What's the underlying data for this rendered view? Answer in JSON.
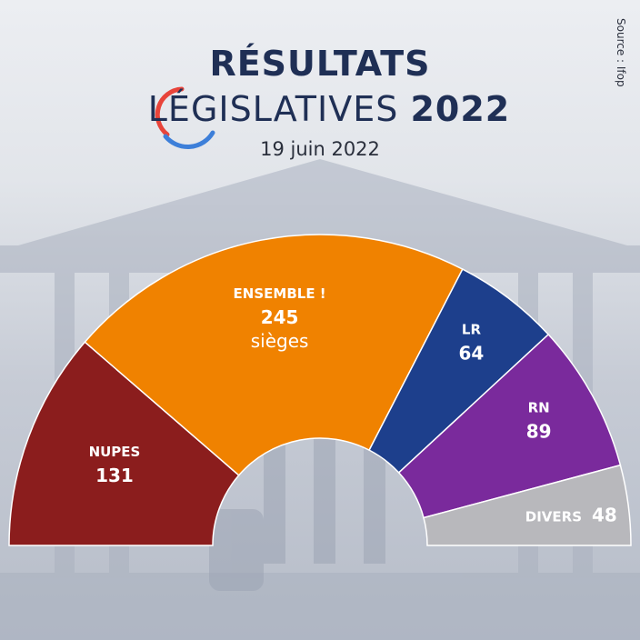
{
  "header": {
    "title_line1": "RÉSULTATS",
    "title_line2": "LÉGISLATIVES",
    "title_year": "2022",
    "date": "19 juin 2022",
    "source": "Source : Ifop"
  },
  "chart_data": {
    "type": "pie",
    "style": "hemicycle",
    "unit_label": "sièges",
    "segments": [
      {
        "name": "NUPES",
        "value": 131,
        "color": "#8b1d1d"
      },
      {
        "name": "ENSEMBLE !",
        "value": 245,
        "color": "#f08200"
      },
      {
        "name": "LR",
        "value": 64,
        "color": "#1d3f8c"
      },
      {
        "name": "RN",
        "value": 89,
        "color": "#7a2a9c"
      },
      {
        "name": "DIVERS",
        "value": 48,
        "color": "#b8b8bc"
      }
    ]
  }
}
